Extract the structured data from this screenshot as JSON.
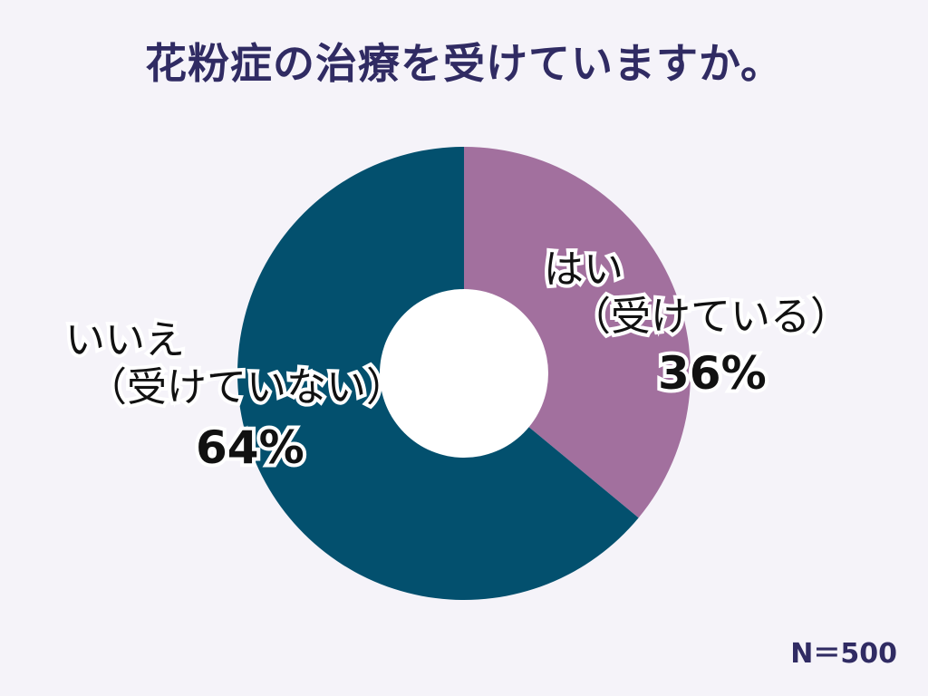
{
  "title": "花粉症の治療を受けていますか。",
  "sample_size": "N＝500",
  "colors": {
    "background": "#f5f3f9",
    "title": "#302b63",
    "yes": "#a2709e",
    "no": "#03506e",
    "hole": "#ffffff"
  },
  "labels": {
    "yes": {
      "line1": "はい",
      "line2": "（受けている）",
      "pct": "36%"
    },
    "no": {
      "line1": "いいえ",
      "line2": "（受けていない）",
      "pct": "64%"
    }
  },
  "chart_data": {
    "type": "pie",
    "subtype": "donut",
    "title": "花粉症の治療を受けていますか。",
    "categories": [
      "はい（受けている）",
      "いいえ（受けていない）"
    ],
    "values": [
      36,
      64
    ],
    "unit": "%",
    "colors": [
      "#a2709e",
      "#03506e"
    ],
    "start_angle": "12 o'clock, clockwise",
    "annotations": [
      "N＝500"
    ],
    "legend": "none (inline labels)"
  }
}
